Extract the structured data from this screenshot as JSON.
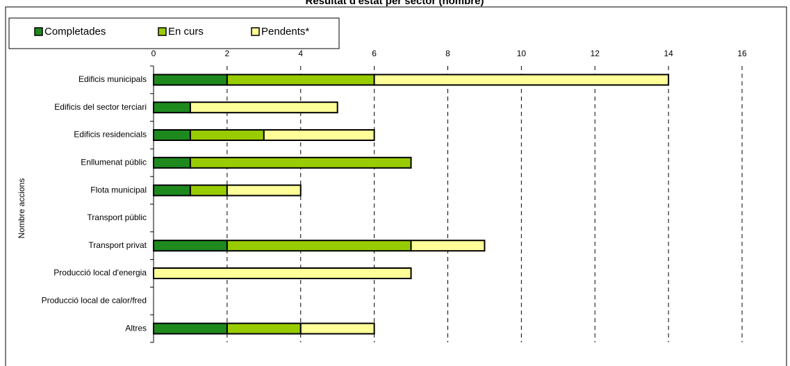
{
  "chart_data": {
    "type": "bar",
    "orientation": "horizontal",
    "stacked": true,
    "title": "Resultat d'estat per sector (nombre)",
    "y_label": "Nombre accions",
    "categories": [
      "Edificis municipals",
      "Edificis del sector terciari",
      "Edificis  residencials",
      "Enllumenat públic",
      "Flota municipal",
      "Transport públic",
      "Transport privat",
      "Producció local d'energia",
      "Producció local de calor/fred",
      "Altres"
    ],
    "series": [
      {
        "name": "Completades",
        "color": "#1e8a1e",
        "values": [
          2,
          1,
          1,
          1,
          1,
          0,
          2,
          0,
          0,
          2
        ]
      },
      {
        "name": "En curs",
        "color": "#99cc00",
        "values": [
          4,
          0,
          2,
          6,
          1,
          0,
          5,
          0,
          0,
          2
        ]
      },
      {
        "name": "Pendents*",
        "color": "#ffff99",
        "values": [
          8,
          4,
          3,
          0,
          2,
          0,
          2,
          7,
          0,
          2
        ]
      }
    ],
    "xlim": [
      0,
      16
    ],
    "xticks": [
      0,
      2,
      4,
      6,
      8,
      10,
      12,
      14,
      16
    ],
    "grid": true,
    "legend": "top-left"
  }
}
